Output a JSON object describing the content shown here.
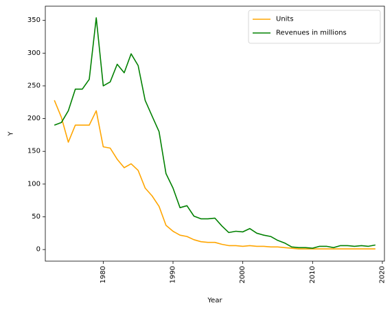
{
  "chart_data": {
    "type": "line",
    "title": "",
    "xlabel": "Year",
    "ylabel": "Y",
    "xlim": [
      1971.7,
      2020.3
    ],
    "ylim": [
      -17.7,
      371.7
    ],
    "xticks": [
      1980,
      1990,
      2000,
      2010,
      2020
    ],
    "yticks": [
      0,
      50,
      100,
      150,
      200,
      250,
      300,
      350
    ],
    "grid": false,
    "legend_position": "top-right",
    "x": [
      1973,
      1974,
      1975,
      1976,
      1977,
      1978,
      1979,
      1980,
      1981,
      1982,
      1983,
      1984,
      1985,
      1986,
      1987,
      1988,
      1989,
      1990,
      1991,
      1992,
      1993,
      1994,
      1995,
      1996,
      1997,
      1998,
      1999,
      2000,
      2001,
      2002,
      2003,
      2004,
      2005,
      2006,
      2007,
      2008,
      2009,
      2010,
      2011,
      2012,
      2013,
      2014,
      2015,
      2016,
      2017,
      2018,
      2019
    ],
    "series": [
      {
        "name": "Units",
        "color": "#ffa500",
        "values": [
          228,
          202,
          164,
          190,
          190,
          190,
          212,
          157,
          155,
          138,
          125,
          131,
          121,
          94,
          82,
          66,
          37,
          28,
          22,
          20,
          15,
          12,
          11,
          11,
          8,
          6,
          6,
          5,
          6,
          5,
          5,
          4,
          4,
          3,
          2,
          1,
          1,
          1,
          1,
          1,
          1,
          1,
          1,
          1,
          1,
          1,
          1
        ]
      },
      {
        "name": "Revenues in millions",
        "color": "#008000",
        "values": [
          190,
          194,
          212,
          245,
          245,
          260,
          354,
          250,
          256,
          283,
          270,
          299,
          281,
          228,
          204,
          180,
          116,
          94,
          64,
          67,
          51,
          47,
          47,
          48,
          36,
          26,
          28,
          27,
          32,
          25,
          22,
          20,
          14,
          10,
          4,
          3,
          3,
          2,
          5,
          5,
          3,
          6,
          6,
          5,
          6,
          5,
          7
        ]
      }
    ]
  }
}
